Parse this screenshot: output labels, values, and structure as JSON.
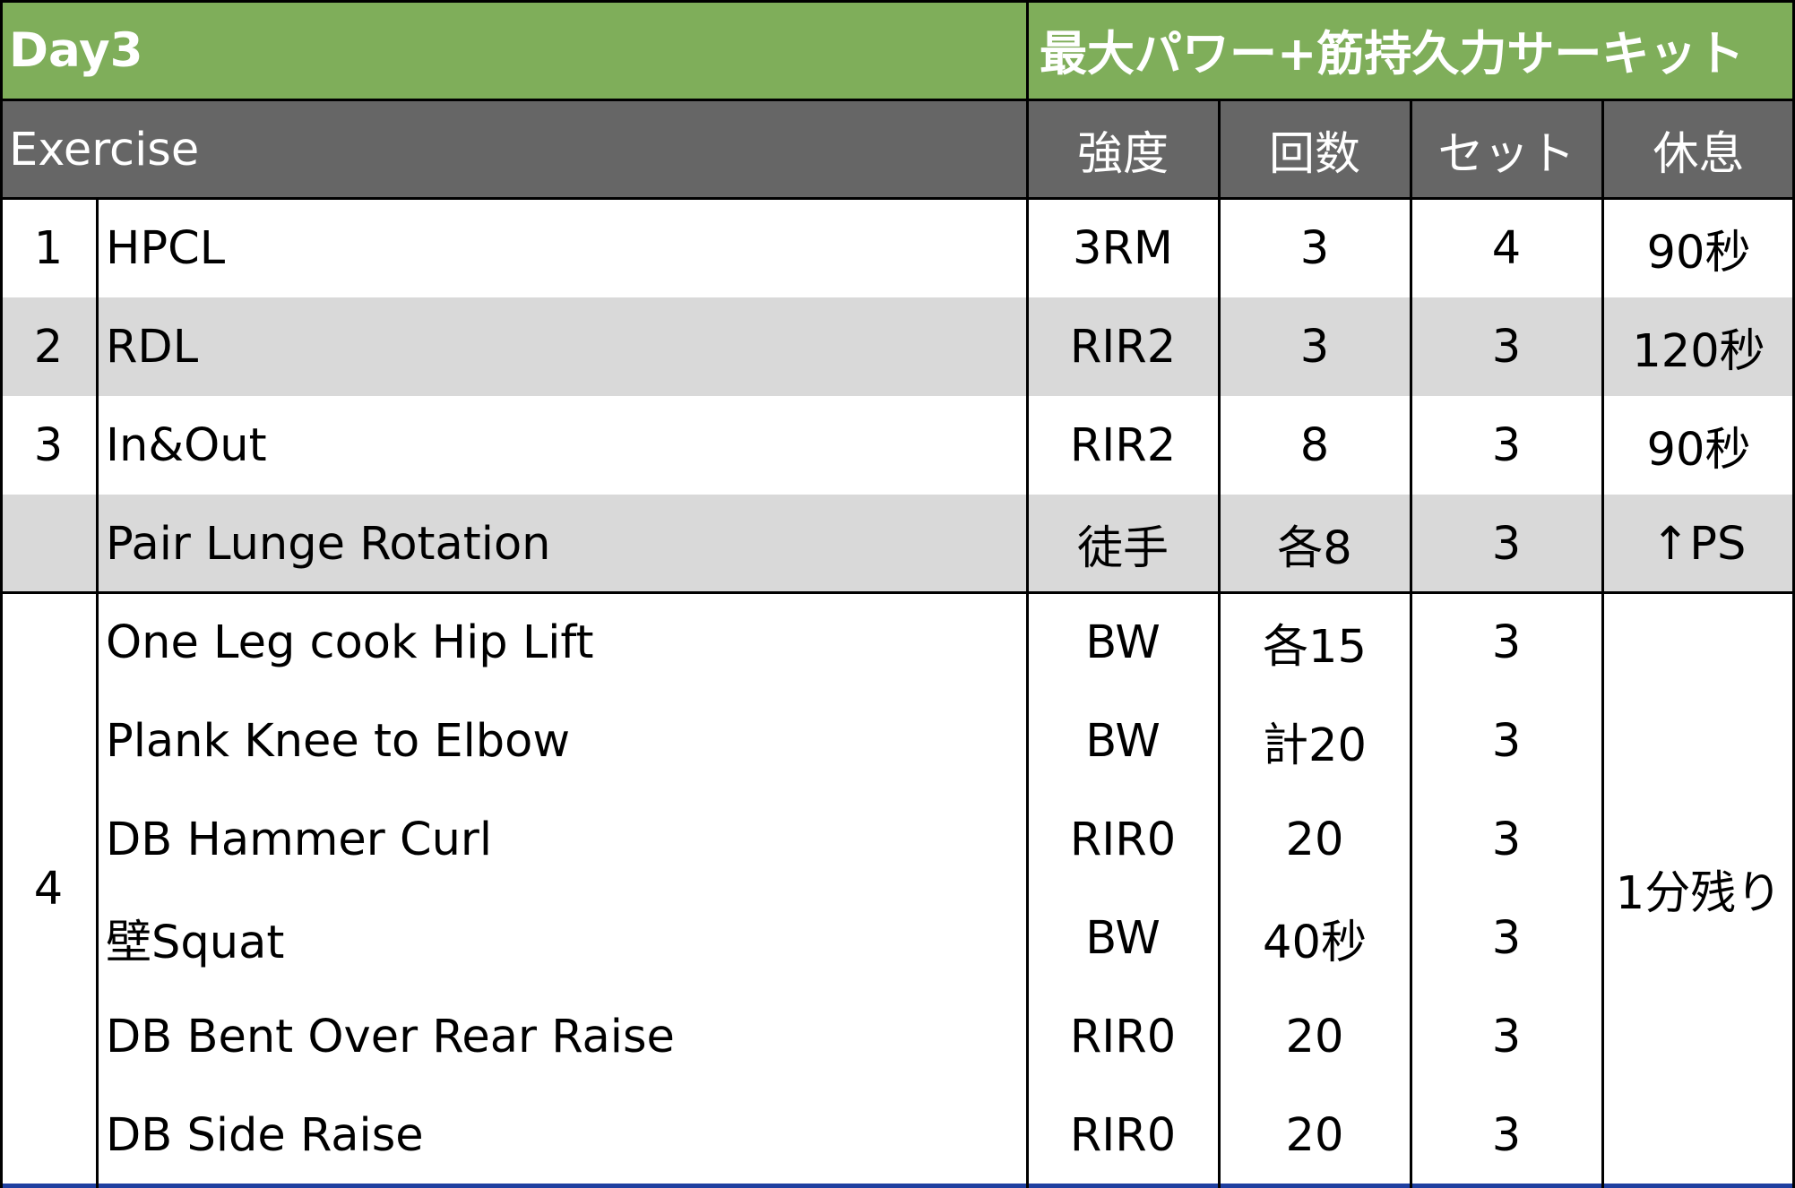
{
  "title_row": {
    "day": "Day3",
    "program": "最大パワー+筋持久力サーキット"
  },
  "headers": {
    "exercise": "Exercise",
    "intensity": "強度",
    "reps": "回数",
    "sets": "セット",
    "rest": "休息"
  },
  "rows": [
    {
      "no": "1",
      "exercise": "HPCL",
      "intensity": "3RM",
      "reps": "3",
      "sets": "4",
      "rest": "90秒"
    },
    {
      "no": "2",
      "exercise": "RDL",
      "intensity": "RIR2",
      "reps": "3",
      "sets": "3",
      "rest": "120秒"
    },
    {
      "no": "3",
      "exercise": "In&Out",
      "intensity": "RIR2",
      "reps": "8",
      "sets": "3",
      "rest": "90秒"
    },
    {
      "no": "",
      "exercise": "Pair Lunge Rotation",
      "intensity": "徒手",
      "reps": "各8",
      "sets": "3",
      "rest": "↑PS"
    }
  ],
  "circuit": {
    "no": "4",
    "rest": "1分残り",
    "items": [
      {
        "exercise": "One Leg cook Hip Lift",
        "intensity": "BW",
        "reps": "各15",
        "sets": "3"
      },
      {
        "exercise": "Plank Knee to Elbow",
        "intensity": "BW",
        "reps": "計20",
        "sets": "3"
      },
      {
        "exercise": "DB Hammer Curl",
        "intensity": "RIR0",
        "reps": "20",
        "sets": "3"
      },
      {
        "exercise": "壁Squat",
        "intensity": "BW",
        "reps": "40秒",
        "sets": "3"
      },
      {
        "exercise": "DB Bent Over Rear Raise",
        "intensity": "RIR0",
        "reps": "20",
        "sets": "3"
      },
      {
        "exercise": "DB Side Raise",
        "intensity": "RIR0",
        "reps": "20",
        "sets": "3"
      }
    ]
  },
  "colors": {
    "title_bg": "#7fae5a",
    "header_bg": "#666666",
    "shade_bg": "#d9d9d9",
    "bottom_border": "#1f3fa0"
  }
}
